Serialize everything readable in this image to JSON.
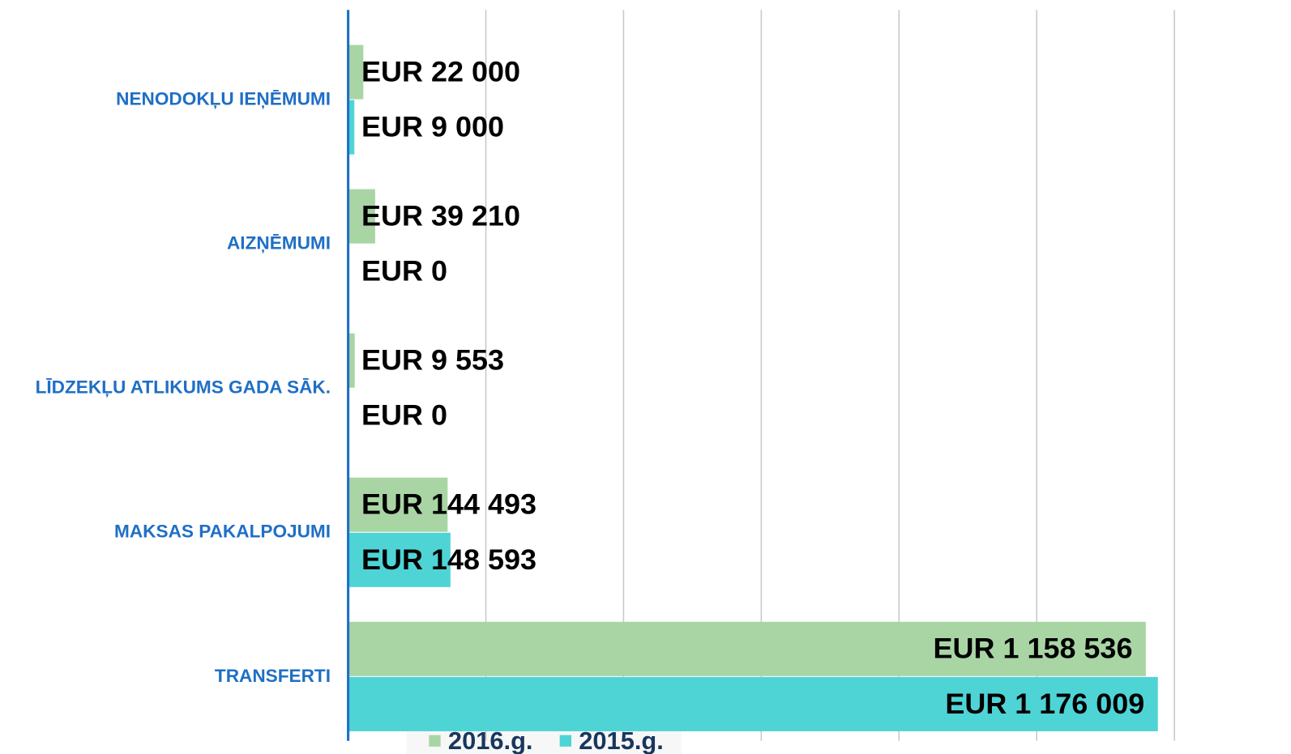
{
  "chart_data": {
    "type": "bar",
    "orientation": "horizontal",
    "categories": [
      "NENODOKĻU IEŅĒMUMI",
      "AIZŅĒMUMI",
      "LĪDZEKĻU ATLIKUMS GADA SĀK.",
      "MAKSAS PAKALPOJUMI",
      "TRANSFERTI"
    ],
    "series": [
      {
        "name": "2016.g.",
        "color": "#a9d5a5",
        "values": [
          22000,
          39210,
          9553,
          144493,
          1158536
        ],
        "value_labels": [
          "EUR 22 000",
          "EUR 39 210",
          "EUR 9 553",
          "EUR 144 493",
          "EUR 1 158 536"
        ]
      },
      {
        "name": "2015.g.",
        "color": "#4fd4d6",
        "values": [
          9000,
          0,
          0,
          148593,
          1176009
        ],
        "value_labels": [
          "EUR 9 000",
          "EUR 0",
          "EUR 0",
          "EUR 148 593",
          "EUR 1 176 009"
        ]
      }
    ],
    "xlim": [
      0,
      1200000
    ],
    "xticks": [
      0,
      200000,
      400000,
      600000,
      800000,
      1000000,
      1200000
    ],
    "grid": true,
    "legend": "bottom"
  }
}
